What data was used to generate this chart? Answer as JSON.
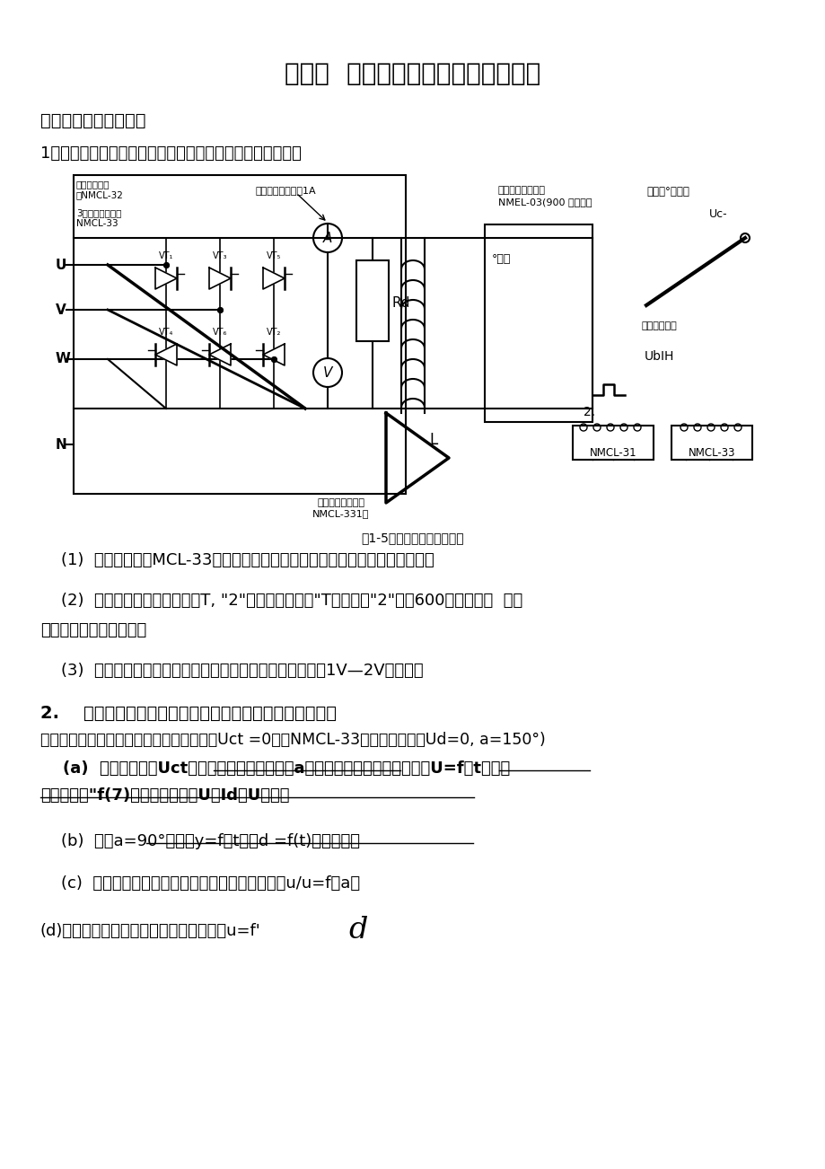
{
  "bg_color": "#ffffff",
  "title": "实验二  三相半波可控整流电路的研究",
  "section1_title": "实验方法和操作步骤：",
  "step1_intro": "1按图接线，未上主电源之前，检查晶闸管的脉冲是否正常。",
  "fig_caption": "图1-5三相半波可控整流电路",
  "item1": "    (1)  用示波器观察MCL-33的双脉冲观察孔，应有间隔均匀，幅度相同的双脉冲",
  "item2_line1": "    (2)  检查相序，用示波器观察T, \"2\"单脉冲观察孔，\"T脉冲超前\"2\"脉冲600，则相序正  确，",
  "item2_line2": "否则，应调整输入电源。",
  "item3": "    (3)  用示波器观察每只晶闸管的控制极，阴极，应有幅度为1V—2V的脉冲。",
  "section2_title": "2.    研究三相半波可控整流电路供电给电阻性负载时的工作",
  "section2_intro": "合上主电源，接上电阻性负载：零位调整，Uct =0，调NMCL-33的偏移电压，使Ud=0, a=150°)",
  "item_a_line1": "    (a)  改变控制电压Uct，观察在不同触发移相角a时，可控整流电路的输出电压U=f（t）与输",
  "item_a_line2": "出电流波形\"f(7)，并记录相应的U「Id、U寸值。",
  "item_b": "    (b)  记录a=90°。时的y=f（t）及d =f(t)的波形图。",
  "item_c": "    (c)  求取三相半波可控整流电路的输入一输出特性u/u=f（a。",
  "item_d": "(d)求取三相半波可控整流电路的负载特性u=f'",
  "item_d_big": "d"
}
